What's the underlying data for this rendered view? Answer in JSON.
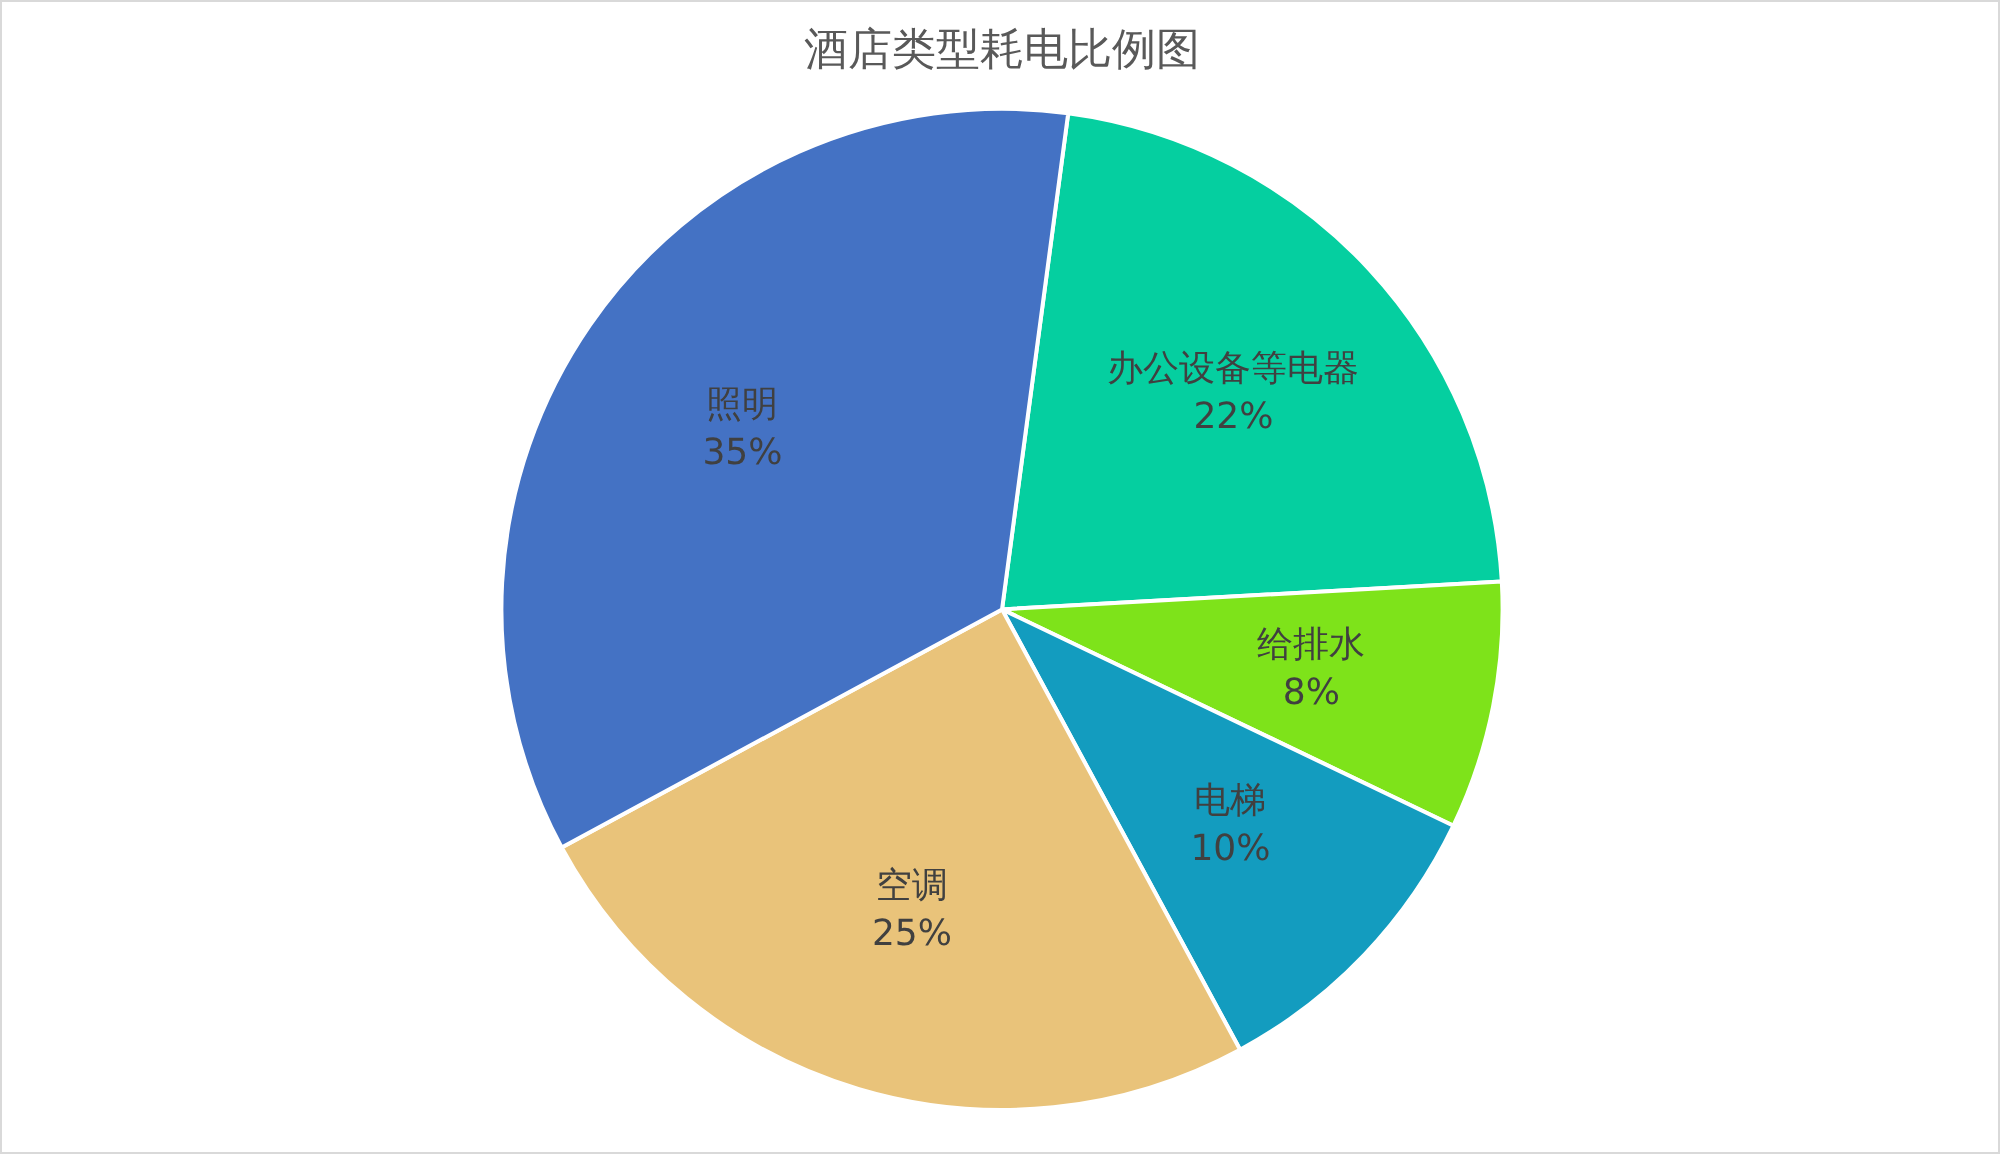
{
  "chart_data": {
    "type": "pie",
    "title": "酒店类型耗电比例图",
    "categories": [
      "办公设备等电器",
      "给排水",
      "电梯",
      "空调",
      "照明"
    ],
    "values": [
      22,
      8,
      10,
      25,
      35
    ],
    "value_labels": [
      "22%",
      "8%",
      "10%",
      "25%",
      "35%"
    ],
    "colors": [
      "#05cfa0",
      "#7ee31a",
      "#139cbf",
      "#e9c37a",
      "#4472c4"
    ],
    "legend": false
  }
}
